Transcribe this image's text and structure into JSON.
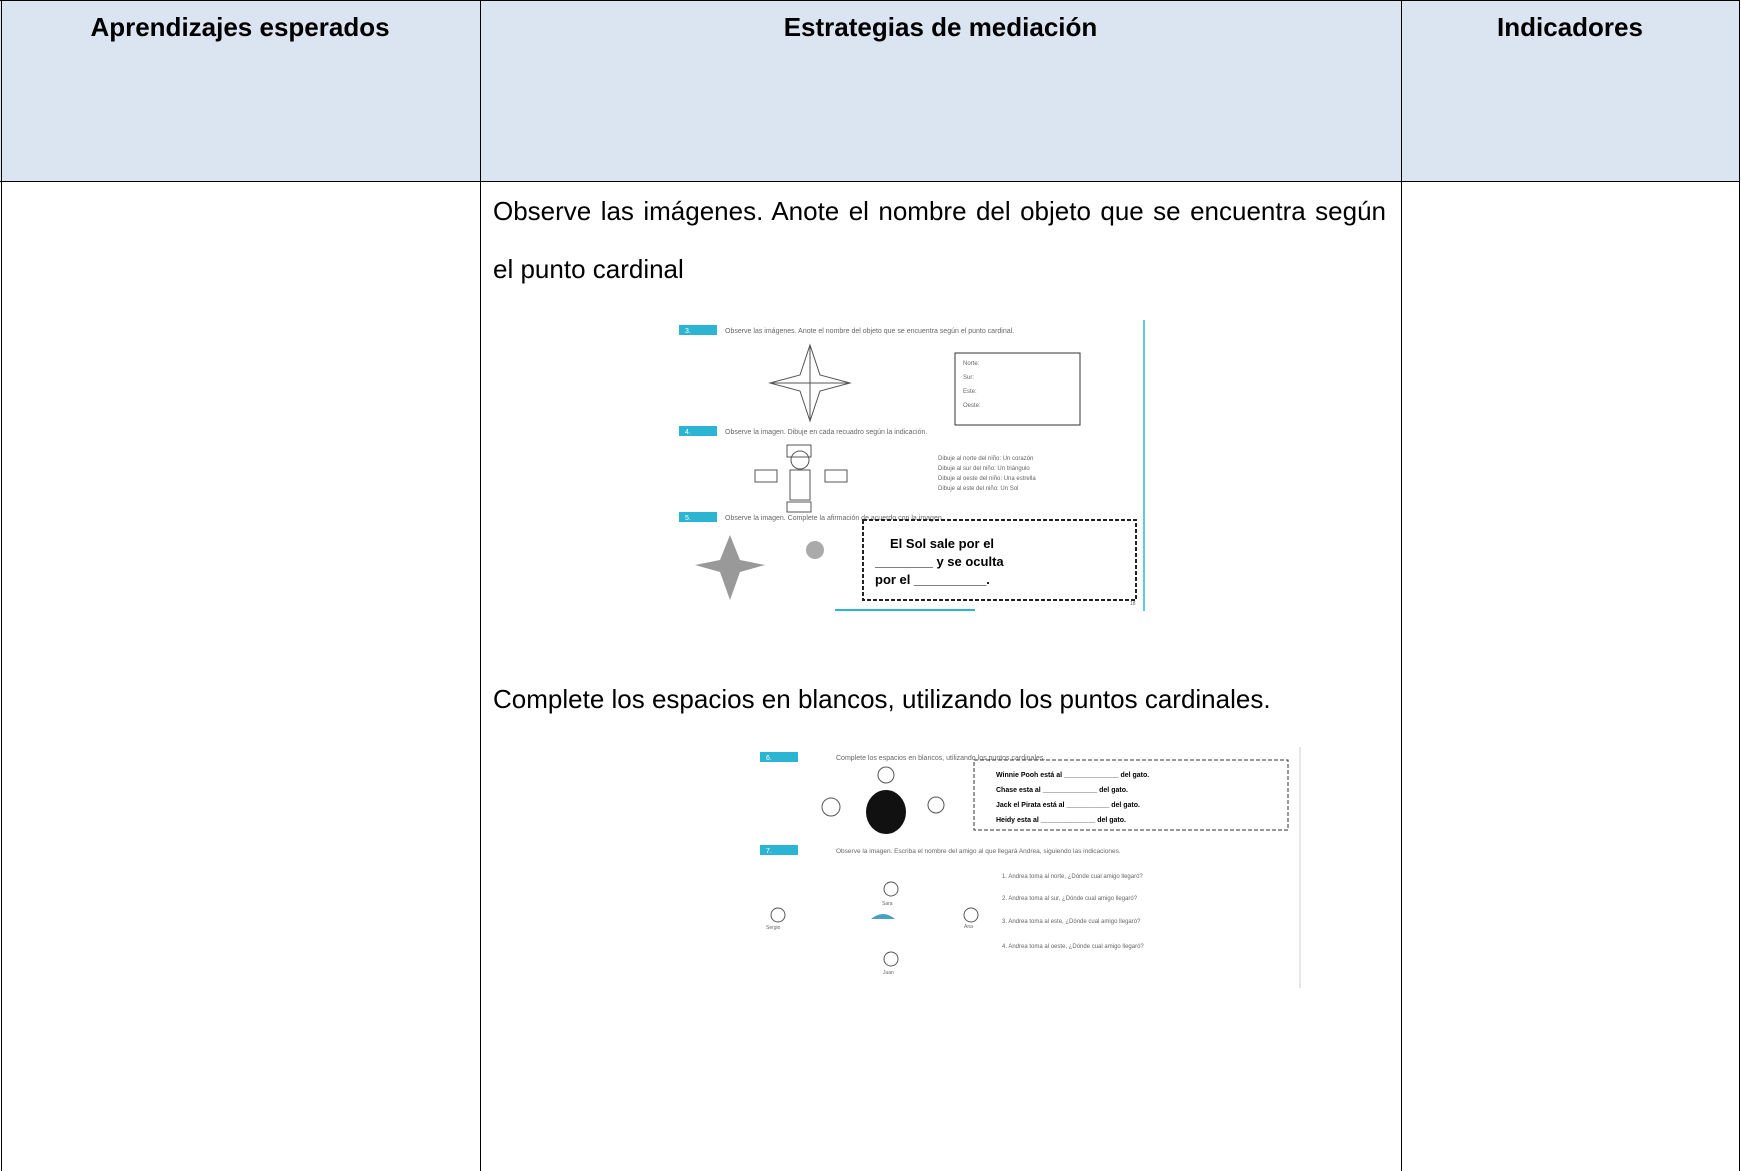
{
  "header": {
    "columns": [
      "Aprendizajes esperados",
      "Estrategias de mediación",
      "Indicadores"
    ]
  },
  "body": {
    "paragraphs": [
      "Observe las imágenes. Anote el nombre del objeto que se encuentra según el punto cardinal",
      "Complete los espacios en blancos, utilizando los puntos cardinales."
    ],
    "worksheet_1": {
      "ex3": {
        "number": "3.",
        "instruction": "Observe las imágenes. Anote el nombre del objeto que se encuentra según el punto cardinal.",
        "fields": [
          "Norte:",
          "Sur:",
          "Este:",
          "Oeste:"
        ]
      },
      "ex4": {
        "number": "4.",
        "instruction": "Observe la imagen. Dibuje en cada recuadro según la indicación.",
        "items": [
          "Dibuje al norte del niño: Un corazón",
          "Dibuje al sur del niño: Un triángulo",
          "Dibuje al oeste del niño: Una estrella",
          "Dibuje al este del niño: Un Sol"
        ]
      },
      "ex5": {
        "number": "5.",
        "instruction": "Observe la imagen. Complete la afirmación de acuerdo con la imagen.",
        "lines": [
          "El Sol sale por el",
          "________ y se oculta",
          "por el __________."
        ]
      },
      "page": "18"
    },
    "worksheet_2": {
      "ex6": {
        "number": "6.",
        "instruction": "Complete los espacios en blancos, utilizando los puntos cardinales.",
        "lines": [
          "Winnie Pooh está al ______________ del gato.",
          "Chase esta al ______________ del gato.",
          "Jack el Pirata está al ___________ del gato.",
          "Heidy esta al ______________ del gato."
        ]
      },
      "ex7": {
        "number": "7.",
        "instruction": "Observe la imagen. Escriba el nombre del amigo al que llegará Andrea, siguiendo las indicaciones.",
        "items": [
          "1.   Andrea toma al norte, ¿Dónde cual amigo llegaró?",
          "2.   Andrea toma al sur, ¿Dónde cual amigo llegaró?",
          "3.   Andrea toma al este, ¿Dónde cual amigo llegaró?",
          "4.   Andrea toma al oeste, ¿Dónde cual amigo llegaró?"
        ],
        "names": [
          "Sara",
          "Sergio",
          "Ana",
          "Juan"
        ]
      }
    }
  }
}
